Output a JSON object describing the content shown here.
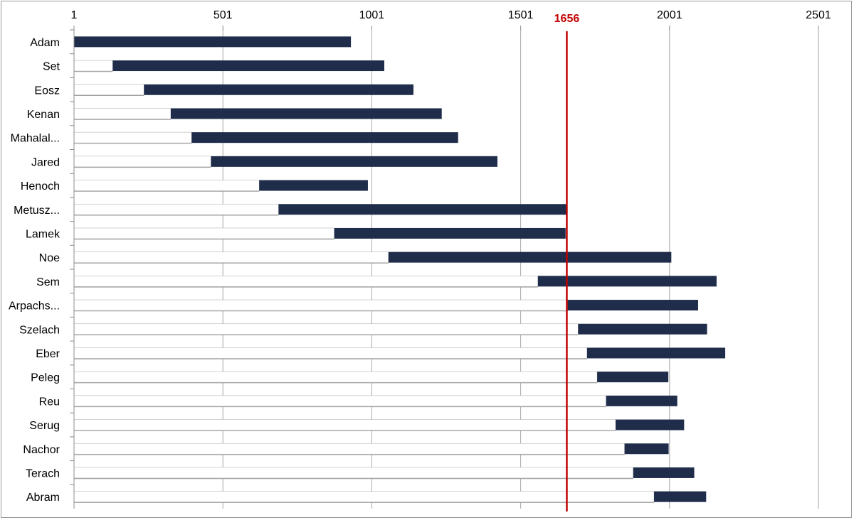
{
  "chart_data": {
    "type": "bar",
    "orientation": "horizontal",
    "stacked": true,
    "title": "",
    "xlabel": "",
    "ylabel": "",
    "xlim": [
      1,
      2501
    ],
    "xticks": [
      1,
      501,
      1001,
      1501,
      2001,
      2501
    ],
    "xaxis_position": "top",
    "grid": "vertical",
    "categories": [
      "Adam",
      "Set",
      "Eosz",
      "Kenan",
      "Mahalal...",
      "Jared",
      "Henoch",
      "Metusz...",
      "Lamek",
      "Noe",
      "Sem",
      "Arpachs...",
      "Szelach",
      "Eber",
      "Peleg",
      "Reu",
      "Serug",
      "Nachor",
      "Terach",
      "Abram"
    ],
    "series": [
      {
        "role": "offset",
        "color": "#ffffff",
        "values": [
          0,
          130,
          235,
          325,
          395,
          460,
          622,
          687,
          874,
          1056,
          1558,
          1658,
          1693,
          1723,
          1757,
          1787,
          1819,
          1849,
          1878,
          1948
        ]
      },
      {
        "role": "lifespan",
        "color": "#1f2d4b",
        "values": [
          930,
          912,
          905,
          910,
          895,
          962,
          365,
          969,
          777,
          950,
          600,
          438,
          433,
          464,
          239,
          239,
          230,
          148,
          205,
          175
        ]
      }
    ],
    "reference_line": {
      "value": 1656,
      "label": "1656",
      "color": "#c00000"
    }
  }
}
